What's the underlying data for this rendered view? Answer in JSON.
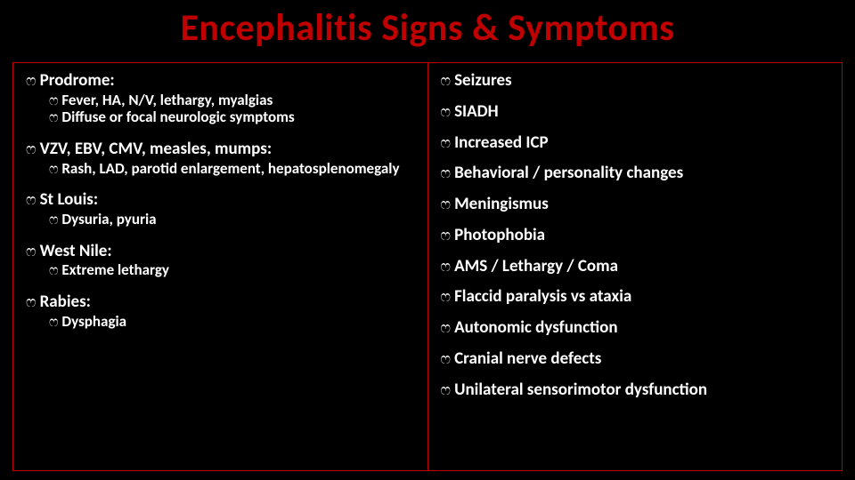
{
  "title": "Encephalitis Signs & Symptoms",
  "colors": {
    "background": "#000000",
    "accent": "#c00000",
    "text": "#ffffff"
  },
  "bullet_glyph": "ෆ",
  "left_column": {
    "groups": [
      {
        "heading": "Prodrome:",
        "subs": [
          "Fever, HA, N/V, lethargy,  myalgias",
          "Diffuse or focal neurologic symptoms"
        ]
      },
      {
        "heading": "VZV, EBV, CMV, measles, mumps:",
        "subs": [
          "Rash, LAD, parotid enlargement, hepatosplenomegaly"
        ]
      },
      {
        "heading": "St Louis:",
        "subs": [
          "Dysuria, pyuria"
        ]
      },
      {
        "heading": "West Nile:",
        "subs": [
          "Extreme lethargy"
        ]
      },
      {
        "heading": "Rabies:",
        "subs": [
          "Dysphagia"
        ]
      }
    ]
  },
  "right_column": {
    "items": [
      "Seizures",
      "SIADH",
      "Increased ICP",
      "Behavioral / personality changes",
      "Meningismus",
      "Photophobia",
      "AMS / Lethargy / Coma",
      "Flaccid paralysis vs ataxia",
      "Autonomic dysfunction",
      "Cranial nerve defects",
      "Unilateral sensorimotor dysfunction"
    ]
  }
}
